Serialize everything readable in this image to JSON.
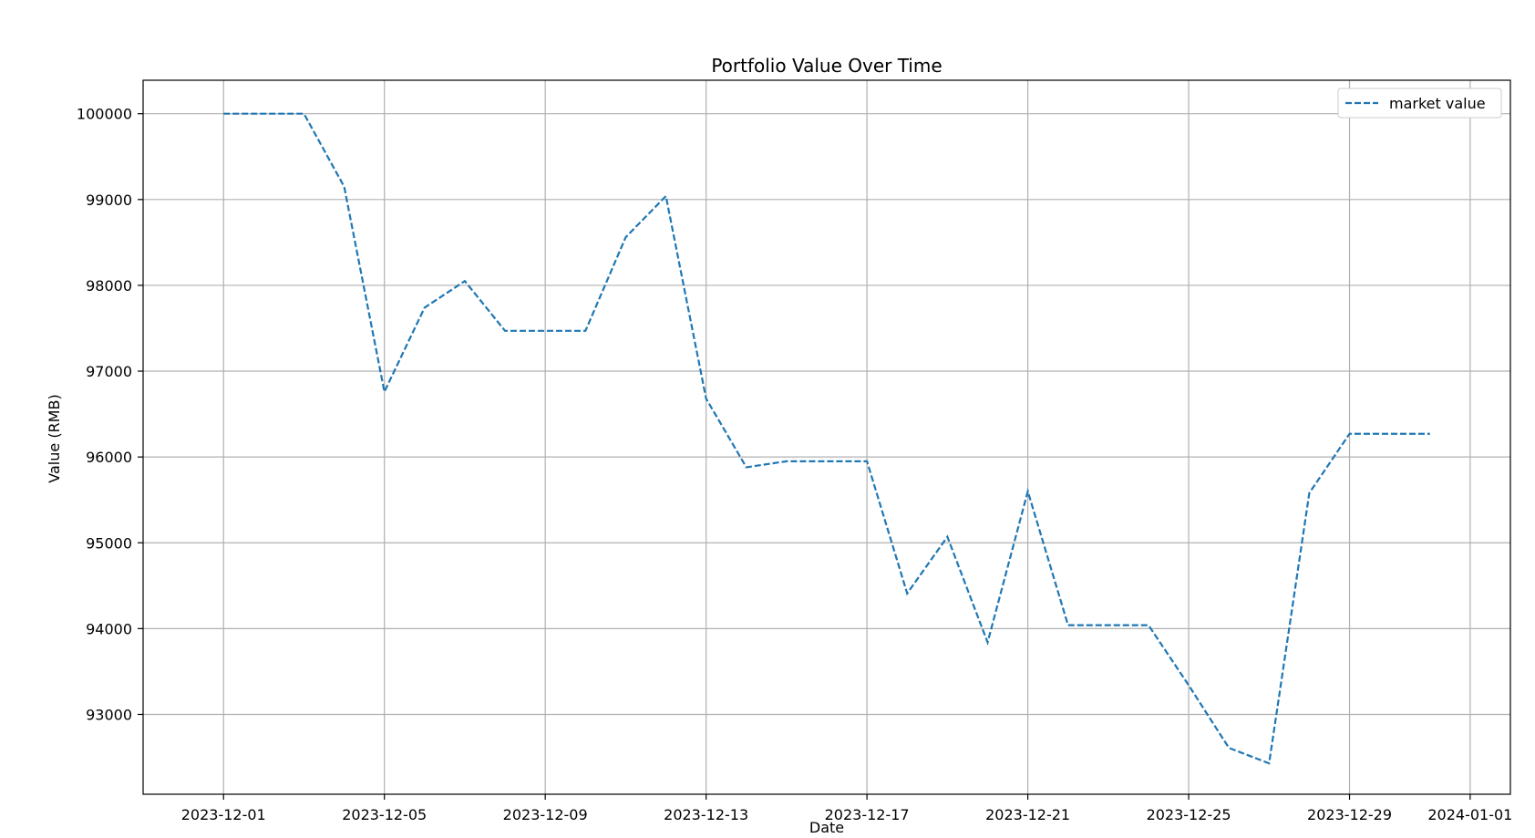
{
  "chart_data": {
    "type": "line",
    "title": "Portfolio Value Over Time",
    "xlabel": "Date",
    "ylabel": "Value (RMB)",
    "x_type": "date",
    "xlim": [
      "2023-11-29",
      "2024-01-02"
    ],
    "ylim": [
      92070,
      100390
    ],
    "x_ticks": [
      "2023-12-01",
      "2023-12-05",
      "2023-12-09",
      "2023-12-13",
      "2023-12-17",
      "2023-12-21",
      "2023-12-25",
      "2023-12-29",
      "2024-01-01"
    ],
    "y_ticks": [
      93000,
      94000,
      95000,
      96000,
      97000,
      98000,
      99000,
      100000
    ],
    "grid": true,
    "legend_position": "top-right",
    "series": [
      {
        "name": "market value",
        "color": "#1f77b4",
        "line_style": "dashed",
        "x": [
          "2023-12-01",
          "2023-12-02",
          "2023-12-03",
          "2023-12-04",
          "2023-12-05",
          "2023-12-06",
          "2023-12-07",
          "2023-12-08",
          "2023-12-09",
          "2023-12-10",
          "2023-12-11",
          "2023-12-12",
          "2023-12-13",
          "2023-12-14",
          "2023-12-15",
          "2023-12-16",
          "2023-12-17",
          "2023-12-18",
          "2023-12-19",
          "2023-12-20",
          "2023-12-21",
          "2023-12-22",
          "2023-12-23",
          "2023-12-24",
          "2023-12-25",
          "2023-12-26",
          "2023-12-27",
          "2023-12-28",
          "2023-12-29",
          "2023-12-30",
          "2023-12-31"
        ],
        "values": [
          100000,
          100000,
          100000,
          99150,
          96760,
          97740,
          98050,
          97470,
          97470,
          97470,
          98560,
          99040,
          96680,
          95880,
          95950,
          95950,
          95950,
          94410,
          95070,
          93840,
          95600,
          94040,
          94040,
          94040,
          93340,
          92610,
          92430,
          95580,
          96270,
          96270,
          96270
        ]
      }
    ]
  }
}
